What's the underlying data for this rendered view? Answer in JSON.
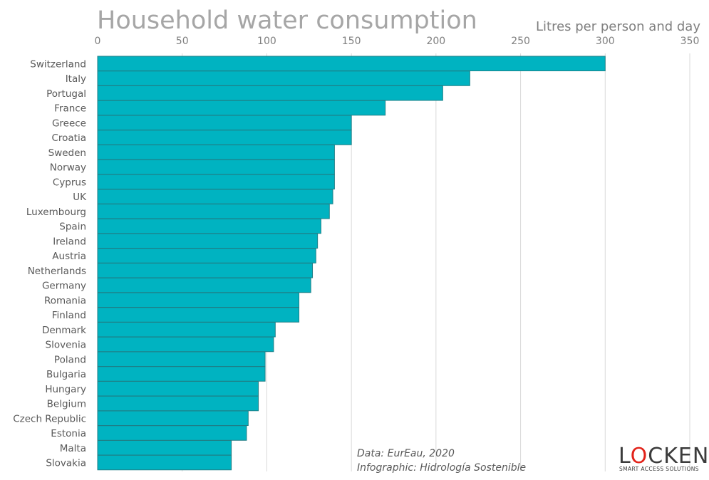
{
  "chart_data": {
    "type": "bar",
    "orientation": "horizontal",
    "title": "Household water consumption",
    "xlabel": "Litres per person and day",
    "xlim": [
      0,
      350
    ],
    "xticks": [
      0,
      50,
      100,
      150,
      200,
      250,
      300,
      350
    ],
    "grid": true,
    "bar_color": "#00b3c1",
    "categories": [
      "Switzerland",
      "Italy",
      "Portugal",
      "France",
      "Greece",
      "Croatia",
      "Sweden",
      "Norway",
      "Cyprus",
      "UK",
      "Luxembourg",
      "Spain",
      "Ireland",
      "Austria",
      "Netherlands",
      "Germany",
      "Romania",
      "Finland",
      "Denmark",
      "Slovenia",
      "Poland",
      "Bulgaria",
      "Hungary",
      "Belgium",
      "Czech Republic",
      "Estonia",
      "Malta",
      "Slovakia"
    ],
    "values": [
      300,
      220,
      204,
      170,
      150,
      150,
      140,
      140,
      140,
      139,
      137,
      132,
      130,
      129,
      127,
      126,
      119,
      119,
      105,
      104,
      99,
      99,
      95,
      95,
      89,
      88,
      79,
      79
    ]
  },
  "source": {
    "line1": "Data: EurEau, 2020",
    "line2": "Infographic: Hidrología Sostenible"
  },
  "logo": {
    "name": "LOCKEN",
    "tagline": "SMART ACCESS SOLUTIONS",
    "accent": "#e2231a"
  }
}
